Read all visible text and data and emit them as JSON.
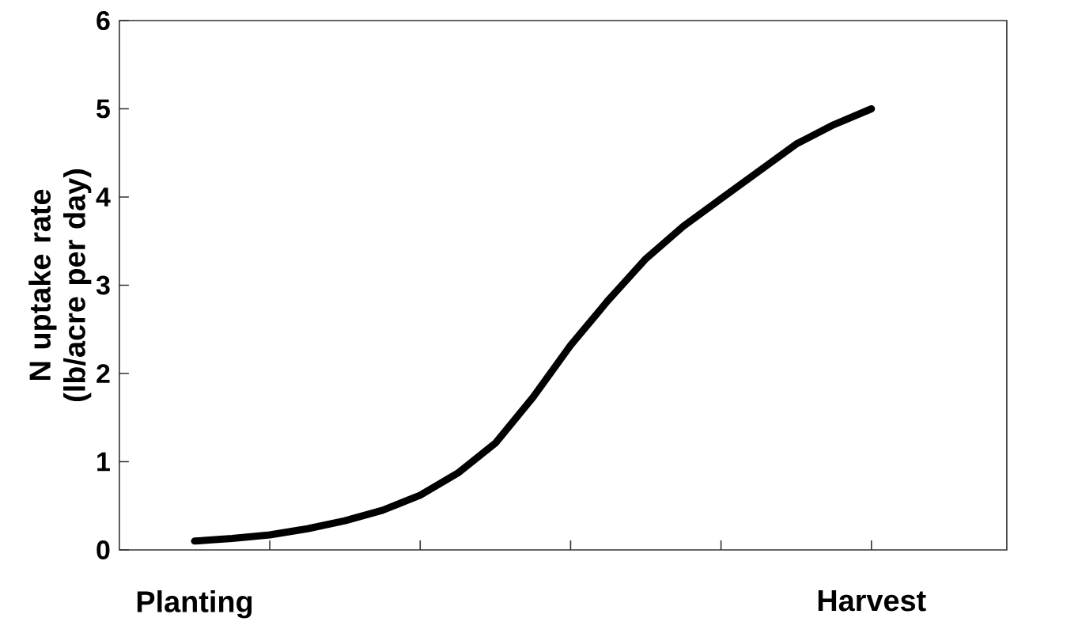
{
  "chart_data": {
    "type": "line",
    "ylabel": "N uptake rate (lb/acre per day)",
    "categories": [
      "Planting",
      null,
      null,
      null,
      null,
      null,
      null,
      null,
      null,
      null,
      null,
      null,
      null,
      null,
      null,
      null,
      null,
      null,
      "Harvest"
    ],
    "series": [
      {
        "color": "#000000",
        "values": [
          0.1,
          0.13,
          0.17,
          0.24,
          0.33,
          0.45,
          0.62,
          0.87,
          1.21,
          1.73,
          2.32,
          2.83,
          3.3,
          3.67,
          3.98,
          4.29,
          4.6,
          4.82,
          5.0
        ]
      }
    ],
    "ylim": [
      0,
      6
    ],
    "yticks": [
      0,
      1,
      2,
      3,
      4,
      5,
      6
    ]
  }
}
